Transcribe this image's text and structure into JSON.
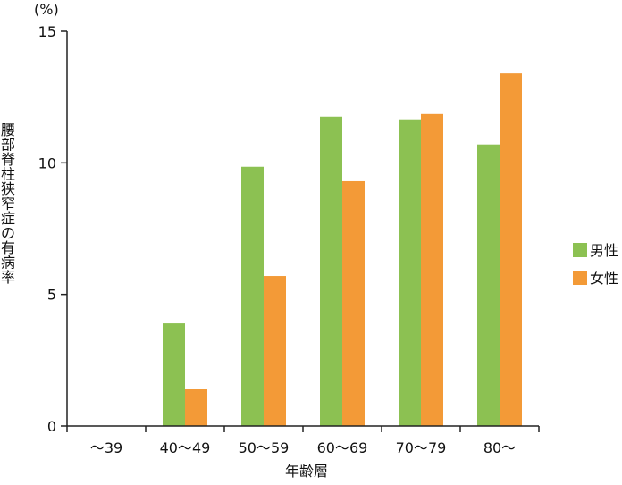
{
  "chart_data": {
    "type": "bar",
    "unit_label": "(%)",
    "xlabel": "年齢層",
    "ylabel": "腰部脊柱狭窄症の有病率",
    "categories": [
      "〜39",
      "40〜49",
      "50〜59",
      "60〜69",
      "70〜79",
      "80〜"
    ],
    "ylim": [
      0,
      15
    ],
    "yticks": [
      "0",
      "5",
      "10",
      "15"
    ],
    "grid": false,
    "legend_position": "right",
    "series": [
      {
        "name": "男性",
        "color": "#8cc152",
        "values": [
          0,
          3.9,
          9.85,
          11.75,
          11.65,
          10.7
        ]
      },
      {
        "name": "女性",
        "color": "#f39a37",
        "values": [
          0,
          1.4,
          5.7,
          9.3,
          11.85,
          13.4
        ]
      }
    ]
  }
}
